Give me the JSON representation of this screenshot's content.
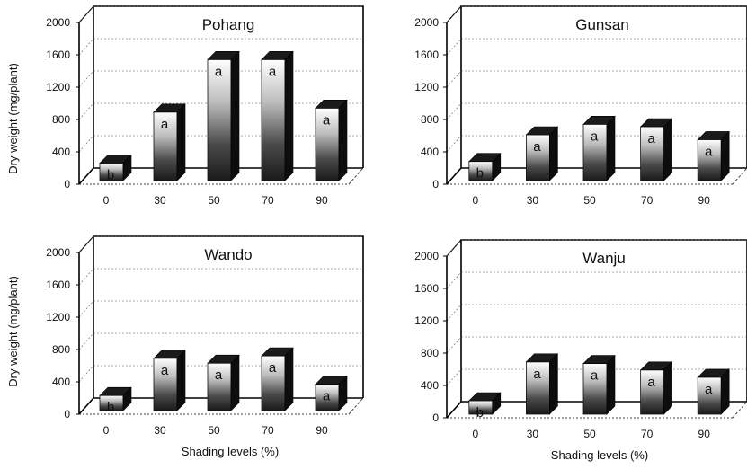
{
  "figure": {
    "xlabel": "Shading levels (%)",
    "ylabel": "Dry weight (mg/plant)"
  },
  "chart_data": [
    {
      "type": "bar",
      "title": "Pohang",
      "categories": [
        "0",
        "30",
        "50",
        "70",
        "90"
      ],
      "values": [
        150,
        780,
        1430,
        1430,
        830
      ],
      "labels": [
        "b",
        "a",
        "a",
        "a",
        "a"
      ],
      "ylim": [
        0,
        2000
      ],
      "yticks": [
        "0",
        "400",
        "800",
        "1200",
        "1600",
        "2000"
      ],
      "xlabel": "",
      "ylabel": "Dry weight (mg/plant)",
      "grid": true
    },
    {
      "type": "bar",
      "title": "Gunsan",
      "categories": [
        "0",
        "30",
        "50",
        "70",
        "90"
      ],
      "values": [
        170,
        500,
        630,
        600,
        440
      ],
      "labels": [
        "b",
        "a",
        "a",
        "a",
        "a"
      ],
      "ylim": [
        0,
        2000
      ],
      "yticks": [
        "0",
        "400",
        "800",
        "1200",
        "1600",
        "2000"
      ],
      "xlabel": "",
      "ylabel": "",
      "grid": true
    },
    {
      "type": "bar",
      "title": "Wando",
      "categories": [
        "0",
        "30",
        "50",
        "70",
        "90"
      ],
      "values": [
        120,
        580,
        520,
        610,
        260
      ],
      "labels": [
        "b",
        "a",
        "a",
        "a",
        "a"
      ],
      "ylim": [
        0,
        2000
      ],
      "yticks": [
        "0",
        "400",
        "800",
        "1200",
        "1600",
        "2000"
      ],
      "xlabel": "Shading levels (%)",
      "ylabel": "Dry weight (mg/plant)",
      "grid": true
    },
    {
      "type": "bar",
      "title": "Wanju",
      "categories": [
        "0",
        "30",
        "50",
        "70",
        "90"
      ],
      "values": [
        100,
        580,
        560,
        480,
        390
      ],
      "labels": [
        "b",
        "a",
        "a",
        "a",
        "a"
      ],
      "ylim": [
        0,
        2000
      ],
      "yticks": [
        "0",
        "400",
        "800",
        "1200",
        "1600",
        "2000"
      ],
      "xlabel": "Shading levels (%)",
      "ylabel": "",
      "grid": true
    }
  ]
}
